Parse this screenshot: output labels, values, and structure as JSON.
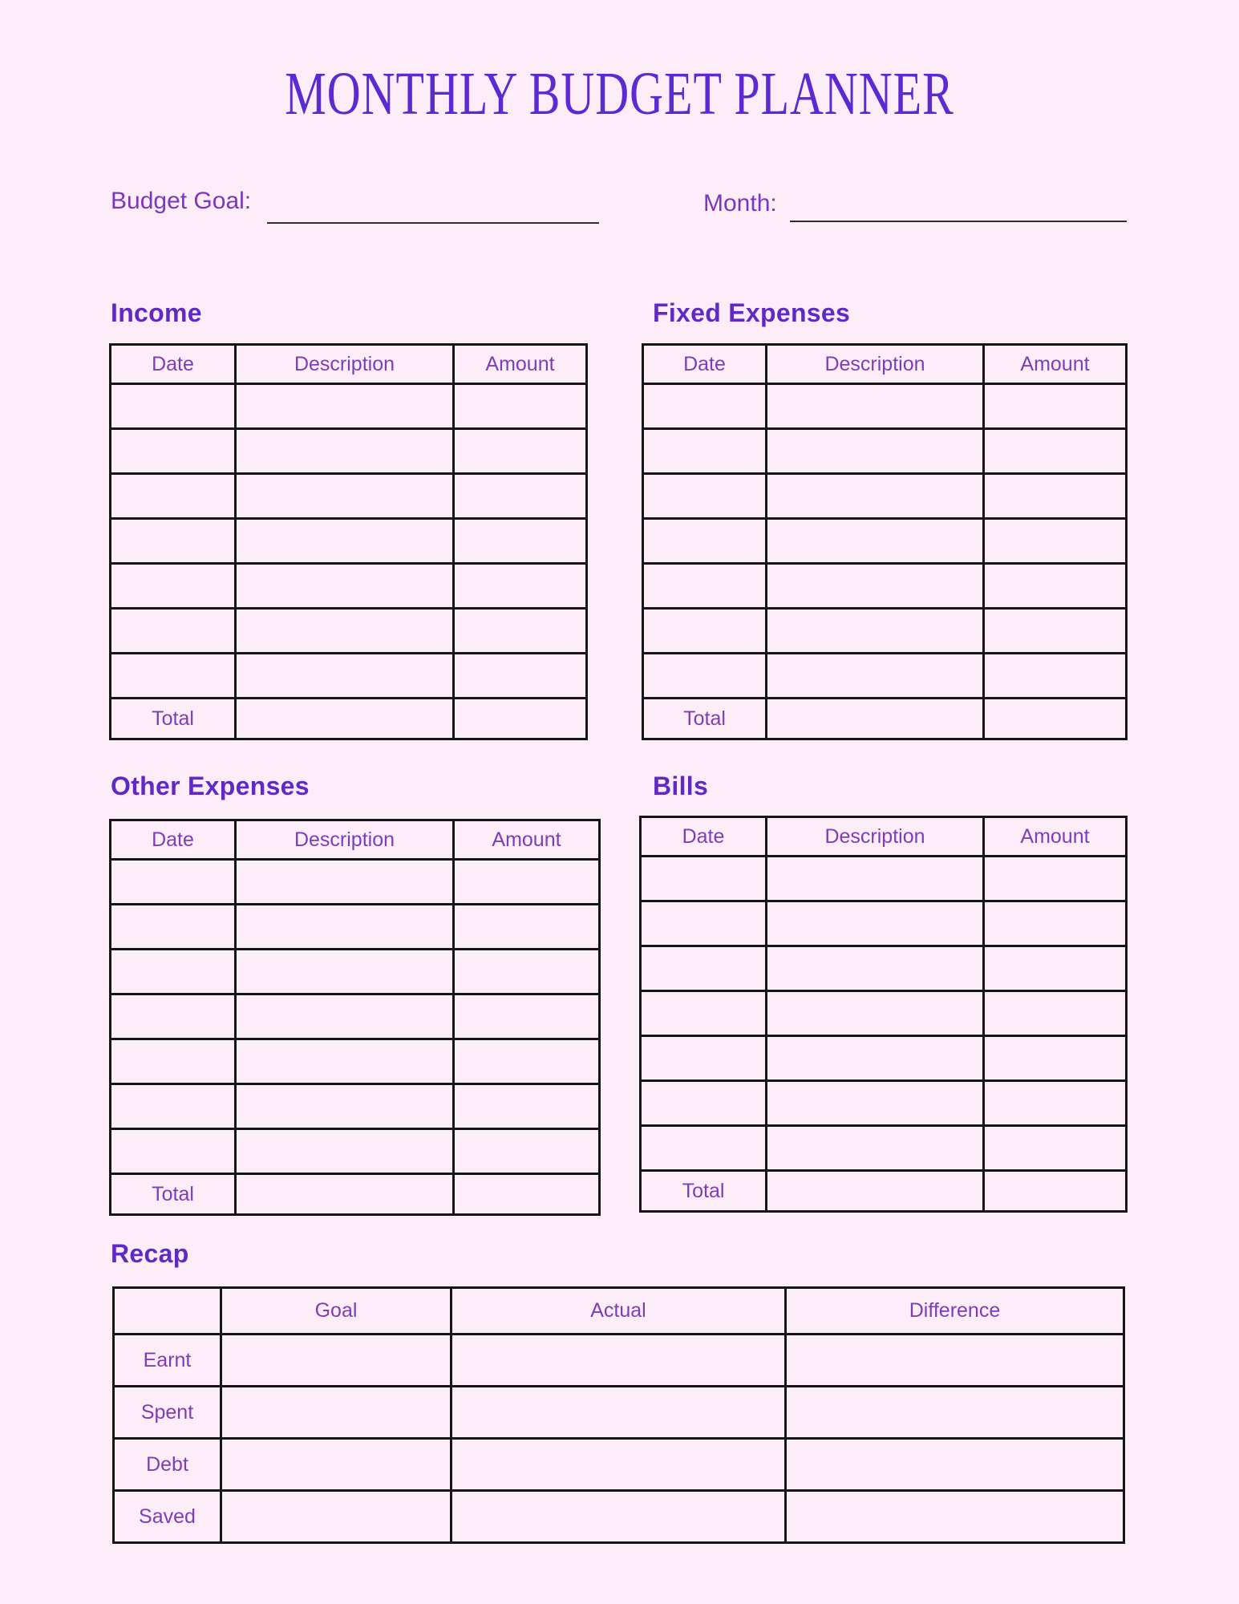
{
  "page": {
    "title": "MONTHLY BUDGET PLANNER"
  },
  "fields": {
    "budget_goal_label": "Budget Goal:",
    "month_label": "Month:",
    "budget_goal_value": "",
    "month_value": ""
  },
  "colors": {
    "background": "#fdedf8",
    "title_text": "#5c2ad2",
    "section_heading": "#6029c5",
    "table_text": "#7e3cb9",
    "field_label": "#7c36bb",
    "table_border": "#161616",
    "write_line": "#2e2e2e"
  },
  "ledger_tables": [
    {
      "id": "income",
      "title": "Income",
      "columns": [
        "Date",
        "Description",
        "Amount"
      ],
      "empty_rows": 7,
      "total_label": "Total"
    },
    {
      "id": "fixed-expenses",
      "title": "Fixed Expenses",
      "columns": [
        "Date",
        "Description",
        "Amount"
      ],
      "empty_rows": 7,
      "total_label": "Total"
    },
    {
      "id": "other-expenses",
      "title": "Other Expenses",
      "columns": [
        "Date",
        "Description",
        "Amount"
      ],
      "empty_rows": 7,
      "total_label": "Total"
    },
    {
      "id": "bills",
      "title": "Bills",
      "columns": [
        "Date",
        "Description",
        "Amount"
      ],
      "empty_rows": 7,
      "total_label": "Total"
    }
  ],
  "recap": {
    "title": "Recap",
    "corner_label": "",
    "columns": [
      "Goal",
      "Actual",
      "Difference"
    ],
    "row_labels": [
      "Earnt",
      "Spent",
      "Debt",
      "Saved"
    ]
  }
}
